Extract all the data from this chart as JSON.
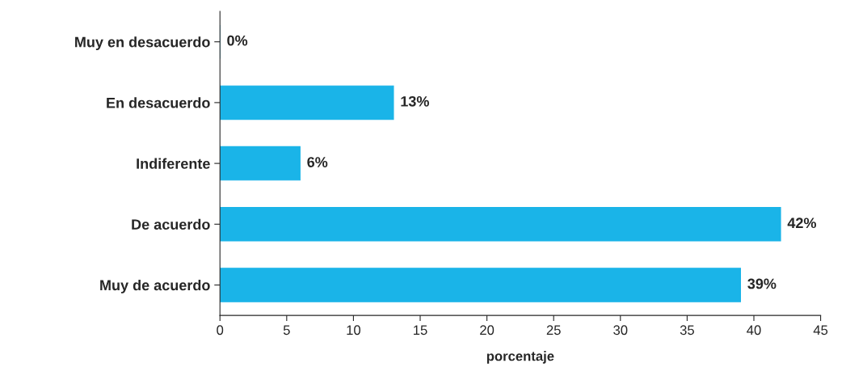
{
  "chart_data": {
    "type": "bar",
    "orientation": "horizontal",
    "categories": [
      "Muy en desacuerdo",
      "En desacuerdo",
      "Indiferente",
      "De acuerdo",
      "Muy de acuerdo"
    ],
    "values": [
      0,
      13,
      6,
      42,
      39
    ],
    "value_labels": [
      "0%",
      "13%",
      "6%",
      "42%",
      "39%"
    ],
    "color": "#1ab4e8",
    "xlabel": "porcentaje",
    "xlim": [
      0,
      45
    ],
    "xticks": [
      0,
      5,
      10,
      15,
      20,
      25,
      30,
      35,
      40,
      45
    ],
    "grid": false,
    "legend": false
  }
}
